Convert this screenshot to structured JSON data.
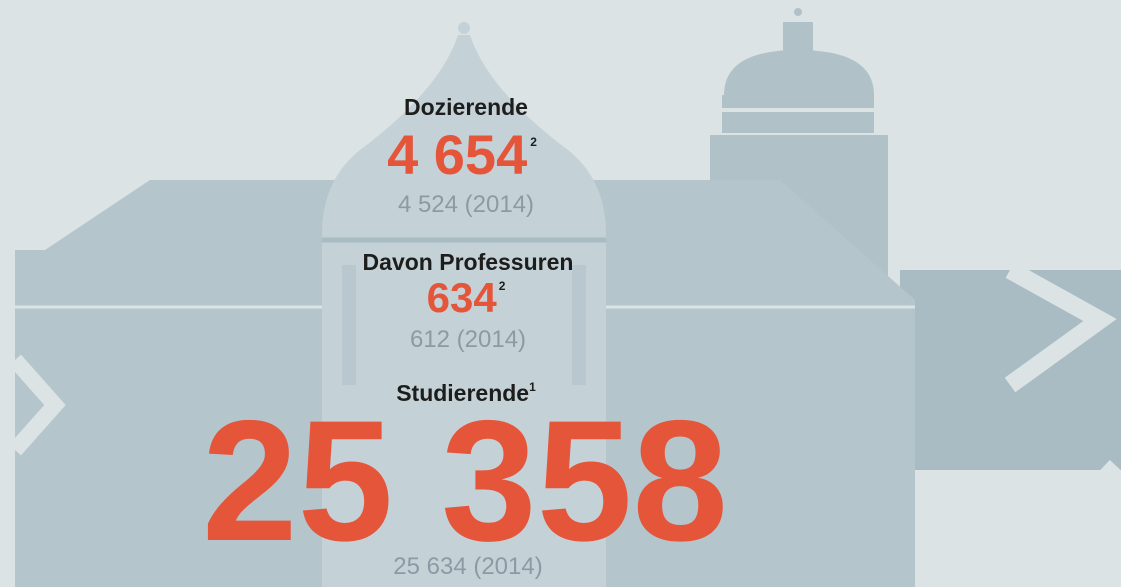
{
  "items": [
    {
      "label": "Dozierende",
      "value": "4 654",
      "note": "2",
      "previous": "4 524 (2014)"
    },
    {
      "label": "Davon Professuren",
      "value": "634",
      "note": "2",
      "previous": "612 (2014)"
    },
    {
      "label": "Studierende",
      "label_note": "1",
      "value": "25 358",
      "previous": "25 634 (2014)"
    }
  ]
}
